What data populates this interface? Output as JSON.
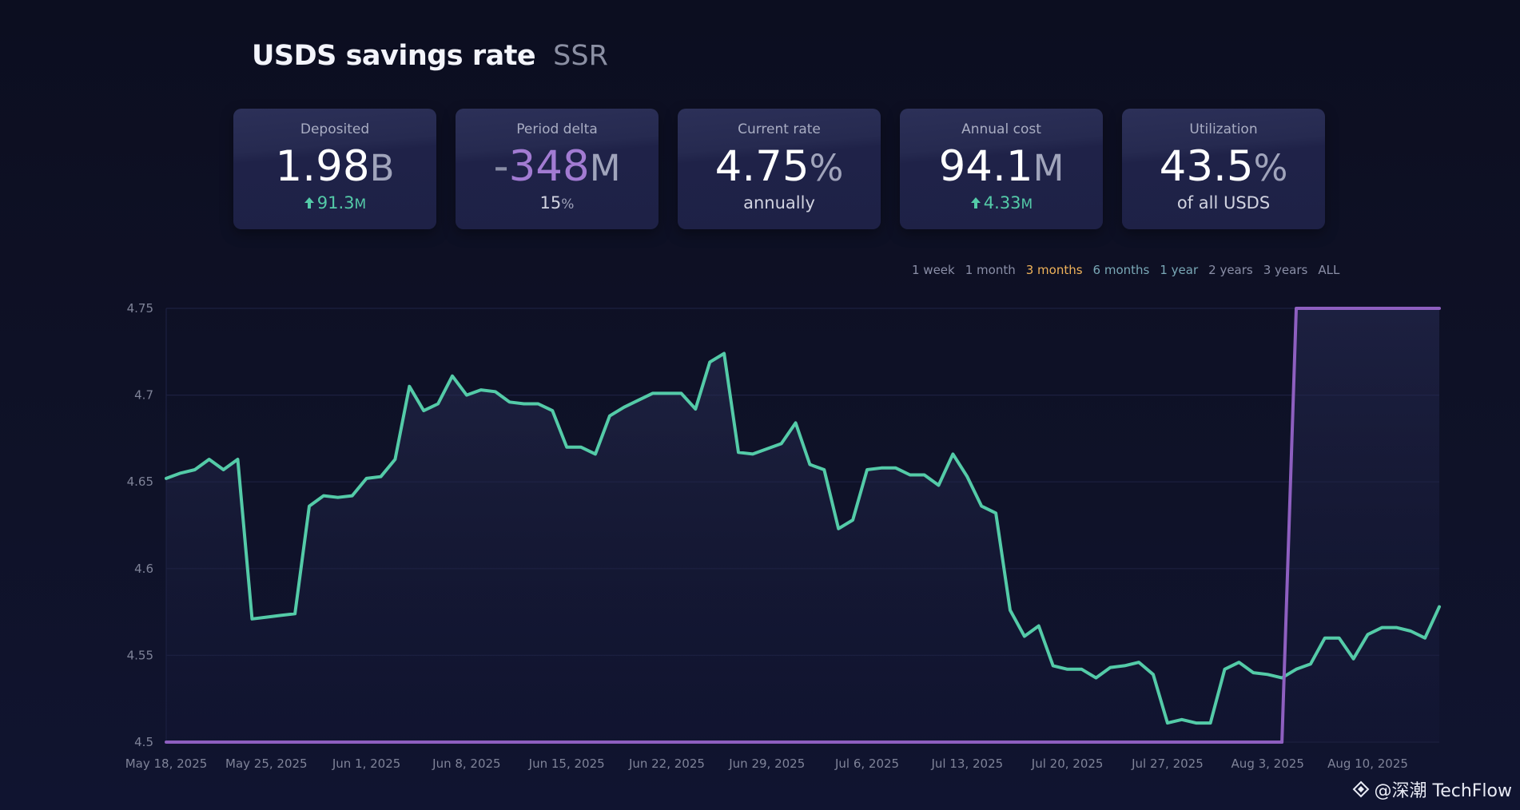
{
  "header": {
    "title": "USDS savings rate",
    "subtitle": "SSR"
  },
  "cards": [
    {
      "label": "Deposited",
      "value": "1.98",
      "unit": "B",
      "sub_value": "91.3",
      "sub_unit": "M"
    },
    {
      "label": "Period delta",
      "prefix": "-",
      "value": "348",
      "unit": "M",
      "sub_value": "15",
      "sub_unit": "%"
    },
    {
      "label": "Current rate",
      "value": "4.75",
      "unit": "%",
      "sub_text": "annually"
    },
    {
      "label": "Annual cost",
      "value": "94.1",
      "unit": "M",
      "sub_value": "4.33",
      "sub_unit": "M"
    },
    {
      "label": "Utilization",
      "value": "43.5",
      "unit": "%",
      "sub_text": "of all USDS"
    }
  ],
  "ranges": [
    "1 week",
    "1 month",
    "3 months",
    "6 months",
    "1 year",
    "2 years",
    "3 years",
    "ALL"
  ],
  "active_range": "3 months",
  "colors": {
    "accent": "#f0b35a",
    "rate_line": "#54cba8",
    "ssr_line": "#8e5fc0",
    "up_green": "#54cba8",
    "purple_value": "#a27bd2"
  },
  "watermark": {
    "text": "@深潮 TechFlow"
  },
  "chart_data": {
    "type": "line",
    "ylim": [
      4.5,
      4.75
    ],
    "y_ticks": [
      "4.75",
      "4.7",
      "4.65",
      "4.6",
      "4.55",
      "4.5"
    ],
    "x_ticks": [
      "May 18, 2025",
      "May 25, 2025",
      "Jun 1, 2025",
      "Jun 8, 2025",
      "Jun 15, 2025",
      "Jun 22, 2025",
      "Jun 29, 2025",
      "Jul 6, 2025",
      "Jul 13, 2025",
      "Jul 20, 2025",
      "Jul 27, 2025",
      "Aug 3, 2025",
      "Aug 10, 2025"
    ],
    "x_start": "2025-05-18",
    "x_end": "2025-08-15",
    "grid": true,
    "series": [
      {
        "color": "#54cba8",
        "points": [
          [
            "2025-05-18",
            4.652
          ],
          [
            "2025-05-19",
            4.655
          ],
          [
            "2025-05-20",
            4.657
          ],
          [
            "2025-05-21",
            4.663
          ],
          [
            "2025-05-22",
            4.657
          ],
          [
            "2025-05-23",
            4.663
          ],
          [
            "2025-05-24",
            4.571
          ],
          [
            "2025-05-25",
            4.572
          ],
          [
            "2025-05-26",
            4.573
          ],
          [
            "2025-05-27",
            4.574
          ],
          [
            "2025-05-28",
            4.636
          ],
          [
            "2025-05-29",
            4.642
          ],
          [
            "2025-05-30",
            4.641
          ],
          [
            "2025-05-31",
            4.642
          ],
          [
            "2025-06-01",
            4.652
          ],
          [
            "2025-06-02",
            4.653
          ],
          [
            "2025-06-03",
            4.663
          ],
          [
            "2025-06-04",
            4.705
          ],
          [
            "2025-06-05",
            4.691
          ],
          [
            "2025-06-06",
            4.695
          ],
          [
            "2025-06-07",
            4.711
          ],
          [
            "2025-06-08",
            4.7
          ],
          [
            "2025-06-09",
            4.703
          ],
          [
            "2025-06-10",
            4.702
          ],
          [
            "2025-06-11",
            4.696
          ],
          [
            "2025-06-12",
            4.695
          ],
          [
            "2025-06-13",
            4.695
          ],
          [
            "2025-06-14",
            4.691
          ],
          [
            "2025-06-15",
            4.67
          ],
          [
            "2025-06-16",
            4.67
          ],
          [
            "2025-06-17",
            4.666
          ],
          [
            "2025-06-18",
            4.688
          ],
          [
            "2025-06-19",
            4.693
          ],
          [
            "2025-06-20",
            4.697
          ],
          [
            "2025-06-21",
            4.701
          ],
          [
            "2025-06-22",
            4.701
          ],
          [
            "2025-06-23",
            4.701
          ],
          [
            "2025-06-24",
            4.692
          ],
          [
            "2025-06-25",
            4.719
          ],
          [
            "2025-06-26",
            4.724
          ],
          [
            "2025-06-27",
            4.667
          ],
          [
            "2025-06-28",
            4.666
          ],
          [
            "2025-06-29",
            4.669
          ],
          [
            "2025-06-30",
            4.672
          ],
          [
            "2025-07-01",
            4.684
          ],
          [
            "2025-07-02",
            4.66
          ],
          [
            "2025-07-03",
            4.657
          ],
          [
            "2025-07-04",
            4.623
          ],
          [
            "2025-07-05",
            4.628
          ],
          [
            "2025-07-06",
            4.657
          ],
          [
            "2025-07-07",
            4.658
          ],
          [
            "2025-07-08",
            4.658
          ],
          [
            "2025-07-09",
            4.654
          ],
          [
            "2025-07-10",
            4.654
          ],
          [
            "2025-07-11",
            4.648
          ],
          [
            "2025-07-12",
            4.666
          ],
          [
            "2025-07-13",
            4.653
          ],
          [
            "2025-07-14",
            4.636
          ],
          [
            "2025-07-15",
            4.632
          ],
          [
            "2025-07-16",
            4.576
          ],
          [
            "2025-07-17",
            4.561
          ],
          [
            "2025-07-18",
            4.567
          ],
          [
            "2025-07-19",
            4.544
          ],
          [
            "2025-07-20",
            4.542
          ],
          [
            "2025-07-21",
            4.542
          ],
          [
            "2025-07-22",
            4.537
          ],
          [
            "2025-07-23",
            4.543
          ],
          [
            "2025-07-24",
            4.544
          ],
          [
            "2025-07-25",
            4.546
          ],
          [
            "2025-07-26",
            4.539
          ],
          [
            "2025-07-27",
            4.511
          ],
          [
            "2025-07-28",
            4.513
          ],
          [
            "2025-07-29",
            4.511
          ],
          [
            "2025-07-30",
            4.511
          ],
          [
            "2025-07-31",
            4.542
          ],
          [
            "2025-08-01",
            4.546
          ],
          [
            "2025-08-02",
            4.54
          ],
          [
            "2025-08-03",
            4.539
          ],
          [
            "2025-08-04",
            4.537
          ],
          [
            "2025-08-05",
            4.542
          ],
          [
            "2025-08-06",
            4.545
          ],
          [
            "2025-08-07",
            4.56
          ],
          [
            "2025-08-08",
            4.56
          ],
          [
            "2025-08-09",
            4.548
          ],
          [
            "2025-08-10",
            4.562
          ],
          [
            "2025-08-11",
            4.566
          ],
          [
            "2025-08-12",
            4.566
          ],
          [
            "2025-08-13",
            4.564
          ],
          [
            "2025-08-14",
            4.56
          ],
          [
            "2025-08-15",
            4.578
          ]
        ]
      },
      {
        "color": "#8e5fc0",
        "points": [
          [
            "2025-05-18",
            4.5
          ],
          [
            "2025-08-04",
            4.5
          ],
          [
            "2025-08-05",
            4.75
          ],
          [
            "2025-08-15",
            4.75
          ]
        ]
      }
    ]
  }
}
